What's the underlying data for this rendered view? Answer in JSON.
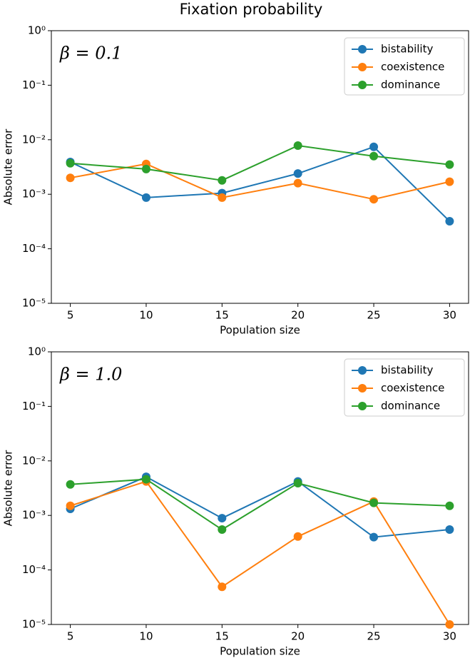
{
  "title": "Fixation probability",
  "chart_data": [
    {
      "type": "line",
      "annotation": "β = 0.1",
      "xlabel": "Population size",
      "ylabel": "Absolute error",
      "x": [
        5,
        10,
        15,
        20,
        25,
        30
      ],
      "xlim": [
        3.75,
        31.25
      ],
      "xticks": [
        5,
        10,
        15,
        20,
        25,
        30
      ],
      "yscale": "log",
      "ylim": [
        1e-05,
        1
      ],
      "yticks": [
        {
          "value": 1e-05,
          "label": "10⁻⁵"
        },
        {
          "value": 0.0001,
          "label": "10⁻⁴"
        },
        {
          "value": 0.001,
          "label": "10⁻³"
        },
        {
          "value": 0.01,
          "label": "10⁻²"
        },
        {
          "value": 0.1,
          "label": "10⁻¹"
        },
        {
          "value": 1,
          "label": "10⁰"
        }
      ],
      "legend": "upper right",
      "series": [
        {
          "name": "bistability",
          "color": "#1f77b4",
          "values": [
            0.0039,
            0.00087,
            0.00105,
            0.0024,
            0.0074,
            0.00032
          ]
        },
        {
          "name": "coexistence",
          "color": "#ff7f0e",
          "values": [
            0.002,
            0.0036,
            0.00087,
            0.0016,
            0.00081,
            0.0017
          ]
        },
        {
          "name": "dominance",
          "color": "#2ca02c",
          "values": [
            0.0037,
            0.0029,
            0.0018,
            0.0078,
            0.005,
            0.0035
          ]
        }
      ]
    },
    {
      "type": "line",
      "annotation": "β = 1.0",
      "xlabel": "Population size",
      "ylabel": "Absolute error",
      "x": [
        5,
        10,
        15,
        20,
        25,
        30
      ],
      "xlim": [
        3.75,
        31.25
      ],
      "xticks": [
        5,
        10,
        15,
        20,
        25,
        30
      ],
      "yscale": "log",
      "ylim": [
        1e-05,
        1
      ],
      "yticks": [
        {
          "value": 1e-05,
          "label": "10⁻⁵"
        },
        {
          "value": 0.0001,
          "label": "10⁻⁴"
        },
        {
          "value": 0.001,
          "label": "10⁻³"
        },
        {
          "value": 0.01,
          "label": "10⁻²"
        },
        {
          "value": 0.1,
          "label": "10⁻¹"
        },
        {
          "value": 1,
          "label": "10⁰"
        }
      ],
      "legend": "upper right",
      "series": [
        {
          "name": "bistability",
          "color": "#1f77b4",
          "values": [
            0.00132,
            0.0051,
            0.00089,
            0.0042,
            0.0004,
            0.00055
          ]
        },
        {
          "name": "coexistence",
          "color": "#ff7f0e",
          "values": [
            0.0015,
            0.0042,
            4.9e-05,
            0.00041,
            0.0018,
            1e-05
          ]
        },
        {
          "name": "dominance",
          "color": "#2ca02c",
          "values": [
            0.0037,
            0.0046,
            0.00055,
            0.0039,
            0.0017,
            0.0015
          ]
        }
      ]
    }
  ]
}
